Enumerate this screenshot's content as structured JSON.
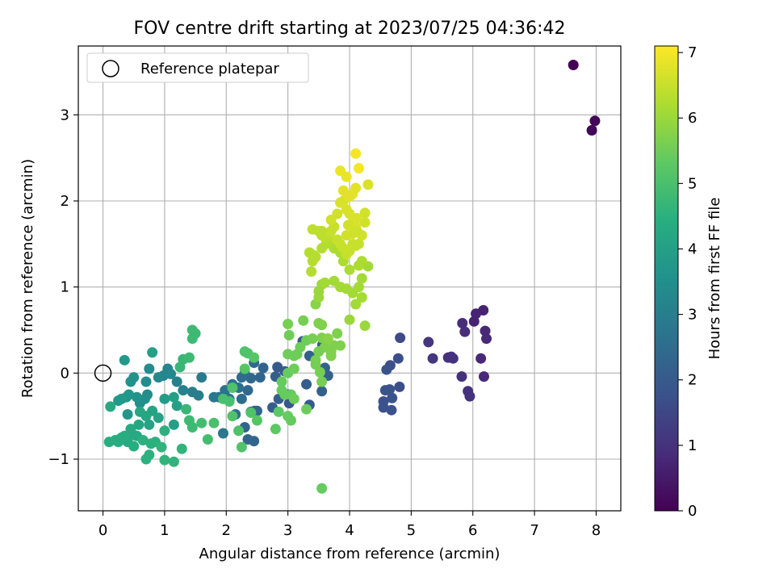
{
  "chart_data": {
    "type": "scatter",
    "title": "FOV centre drift starting at 2023/07/25 04:36:42",
    "xlabel": "Angular distance from reference (arcmin)",
    "ylabel": "Rotation from reference (arcmin)",
    "xlim": [
      -0.4,
      8.4
    ],
    "ylim": [
      -1.6,
      3.8
    ],
    "xticks": [
      0,
      1,
      2,
      3,
      4,
      5,
      6,
      7,
      8
    ],
    "yticks": [
      -1,
      0,
      1,
      2,
      3
    ],
    "grid": true,
    "legend": {
      "placement": "top-left",
      "entries": [
        "Reference platepar"
      ]
    },
    "reference_point": {
      "x": 0,
      "y": 0,
      "label": "Reference platepar"
    },
    "colorbar": {
      "label": "Hours from first FF file",
      "colormap": "viridis",
      "range": [
        0,
        7.1
      ],
      "ticks": [
        0,
        1,
        2,
        3,
        4,
        5,
        6,
        7
      ]
    },
    "points": [
      [
        7.63,
        3.58,
        0.0
      ],
      [
        7.98,
        2.93,
        0.1
      ],
      [
        7.93,
        2.82,
        0.1
      ],
      [
        6.17,
        0.73,
        0.7
      ],
      [
        6.05,
        0.69,
        0.7
      ],
      [
        6.2,
        0.49,
        0.8
      ],
      [
        6.22,
        0.4,
        0.8
      ],
      [
        6.13,
        0.17,
        0.8
      ],
      [
        6.18,
        -0.04,
        0.8
      ],
      [
        6.02,
        0.6,
        0.7
      ],
      [
        5.83,
        0.58,
        0.9
      ],
      [
        5.87,
        0.48,
        0.9
      ],
      [
        5.65,
        0.19,
        1.0
      ],
      [
        5.6,
        0.18,
        1.0
      ],
      [
        5.68,
        0.17,
        1.0
      ],
      [
        5.35,
        0.17,
        1.1
      ],
      [
        5.82,
        -0.04,
        1.0
      ],
      [
        5.92,
        -0.21,
        1.0
      ],
      [
        5.95,
        -0.27,
        1.0
      ],
      [
        5.28,
        0.36,
        1.1
      ],
      [
        4.82,
        0.41,
        1.6
      ],
      [
        4.79,
        0.17,
        1.7
      ],
      [
        4.66,
        0.09,
        1.7
      ],
      [
        4.6,
        0.04,
        1.8
      ],
      [
        4.81,
        -0.16,
        1.7
      ],
      [
        4.65,
        -0.19,
        1.8
      ],
      [
        4.69,
        -0.29,
        1.8
      ],
      [
        4.55,
        -0.33,
        1.8
      ],
      [
        4.55,
        -0.4,
        1.8
      ],
      [
        4.68,
        -0.43,
        1.8
      ],
      [
        4.58,
        -0.2,
        1.8
      ],
      [
        2.83,
        0.07,
        2.0
      ],
      [
        2.95,
        0.02,
        2.0
      ],
      [
        2.8,
        -0.04,
        2.1
      ],
      [
        2.85,
        -0.3,
        2.1
      ],
      [
        2.75,
        -0.4,
        2.1
      ],
      [
        3.0,
        -0.25,
        2.0
      ],
      [
        3.02,
        -0.35,
        2.0
      ],
      [
        3.35,
        -0.37,
        2.0
      ],
      [
        3.3,
        -0.13,
        2.1
      ],
      [
        3.24,
        0.37,
        2.1
      ],
      [
        3.56,
        0.33,
        2.2
      ],
      [
        3.6,
        0.06,
        2.2
      ],
      [
        3.65,
        -0.03,
        2.2
      ],
      [
        3.35,
        0.2,
        2.2
      ],
      [
        3.55,
        -0.21,
        2.2
      ],
      [
        2.6,
        0.06,
        2.3
      ],
      [
        2.55,
        -0.05,
        2.3
      ],
      [
        2.45,
        0.12,
        2.4
      ],
      [
        2.4,
        -0.06,
        2.4
      ],
      [
        2.35,
        -0.2,
        2.4
      ],
      [
        2.3,
        0.0,
        2.5
      ],
      [
        2.25,
        -0.3,
        2.5
      ],
      [
        2.25,
        -0.05,
        2.5
      ],
      [
        2.2,
        -0.17,
        2.6
      ],
      [
        2.15,
        -0.48,
        2.6
      ],
      [
        2.1,
        -0.13,
        2.6
      ],
      [
        2.0,
        -0.28,
        2.7
      ],
      [
        2.05,
        -0.3,
        2.7
      ],
      [
        1.98,
        -0.2,
        2.7
      ],
      [
        1.88,
        -0.28,
        2.7
      ],
      [
        1.8,
        -0.28,
        2.8
      ],
      [
        2.3,
        -0.63,
        2.3
      ],
      [
        2.35,
        -0.77,
        2.3
      ],
      [
        2.45,
        -0.79,
        2.3
      ],
      [
        2.46,
        -0.44,
        2.3
      ],
      [
        2.5,
        -0.44,
        2.3
      ],
      [
        1.95,
        -0.7,
        2.8
      ],
      [
        2.4,
        -0.45,
        2.4
      ],
      [
        1.6,
        -0.05,
        2.9
      ],
      [
        1.55,
        -0.26,
        3.0
      ],
      [
        1.45,
        -0.22,
        3.0
      ],
      [
        1.3,
        -0.2,
        3.1
      ],
      [
        1.2,
        -0.1,
        3.1
      ],
      [
        1.05,
        0.05,
        3.2
      ],
      [
        0.98,
        -0.03,
        3.2
      ],
      [
        1.1,
        -0.01,
        3.3
      ],
      [
        0.9,
        -0.05,
        3.3
      ],
      [
        0.75,
        0.05,
        3.4
      ],
      [
        0.7,
        -0.1,
        3.4
      ],
      [
        0.72,
        -0.25,
        3.4
      ],
      [
        0.68,
        -0.3,
        3.5
      ],
      [
        0.6,
        -0.35,
        3.5
      ],
      [
        0.55,
        -0.28,
        3.6
      ],
      [
        0.5,
        -0.05,
        3.6
      ],
      [
        0.45,
        -0.1,
        3.6
      ],
      [
        0.42,
        -0.25,
        3.7
      ],
      [
        0.4,
        -0.48,
        3.7
      ],
      [
        0.38,
        -0.28,
        3.7
      ],
      [
        0.35,
        0.15,
        3.8
      ],
      [
        0.3,
        -0.3,
        3.8
      ],
      [
        0.25,
        -0.32,
        3.8
      ],
      [
        0.8,
        0.24,
        4.0
      ],
      [
        1.0,
        -0.3,
        3.9
      ],
      [
        1.15,
        -0.28,
        4.0
      ],
      [
        1.2,
        -0.38,
        4.0
      ],
      [
        1.15,
        -0.6,
        4.0
      ],
      [
        0.9,
        -0.52,
        4.1
      ],
      [
        0.8,
        -0.44,
        4.1
      ],
      [
        0.75,
        -0.6,
        4.1
      ],
      [
        0.7,
        -0.5,
        4.2
      ],
      [
        0.6,
        -0.45,
        4.2
      ],
      [
        0.58,
        -0.6,
        4.2
      ],
      [
        0.55,
        -0.73,
        4.3
      ],
      [
        0.5,
        -0.72,
        4.3
      ],
      [
        0.45,
        -0.65,
        4.3
      ],
      [
        0.4,
        -0.8,
        4.3
      ],
      [
        0.35,
        -0.73,
        4.4
      ],
      [
        0.3,
        -0.75,
        4.4
      ],
      [
        0.25,
        -0.8,
        4.4
      ],
      [
        0.2,
        -0.78,
        4.4
      ],
      [
        0.1,
        -0.8,
        4.4
      ],
      [
        0.12,
        -0.39,
        4.3
      ],
      [
        0.5,
        -0.85,
        4.4
      ],
      [
        0.65,
        -0.78,
        4.5
      ],
      [
        0.7,
        -1.0,
        4.5
      ],
      [
        0.75,
        -0.95,
        4.5
      ],
      [
        0.78,
        -0.82,
        4.5
      ],
      [
        0.85,
        -0.8,
        4.5
      ],
      [
        0.95,
        -0.86,
        4.6
      ],
      [
        1.0,
        -0.67,
        4.5
      ],
      [
        1.0,
        -1.01,
        4.6
      ],
      [
        1.15,
        -1.03,
        4.6
      ],
      [
        1.28,
        -0.88,
        4.6
      ],
      [
        1.25,
        0.07,
        4.7
      ],
      [
        1.3,
        0.16,
        4.7
      ],
      [
        1.4,
        0.18,
        4.8
      ],
      [
        1.45,
        0.4,
        4.8
      ],
      [
        1.5,
        0.46,
        4.8
      ],
      [
        1.45,
        0.5,
        4.8
      ],
      [
        1.35,
        -0.42,
        4.7
      ],
      [
        1.4,
        -0.55,
        4.8
      ],
      [
        1.45,
        -0.63,
        4.8
      ],
      [
        1.6,
        -0.58,
        4.9
      ],
      [
        1.7,
        -0.77,
        4.9
      ],
      [
        1.8,
        -0.58,
        5.0
      ],
      [
        1.95,
        -0.3,
        5.0
      ],
      [
        2.05,
        -0.33,
        5.0
      ],
      [
        2.1,
        -0.5,
        5.1
      ],
      [
        2.2,
        -0.67,
        5.1
      ],
      [
        2.25,
        -0.86,
        5.1
      ],
      [
        2.35,
        0.23,
        5.1
      ],
      [
        2.3,
        0.25,
        5.1
      ],
      [
        2.45,
        0.18,
        5.2
      ],
      [
        2.4,
        -0.46,
        5.1
      ],
      [
        2.5,
        -0.55,
        5.2
      ],
      [
        2.8,
        -0.65,
        5.3
      ],
      [
        2.85,
        -0.45,
        5.3
      ],
      [
        2.3,
        0.05,
        5.2
      ],
      [
        2.1,
        -0.17,
        5.1
      ],
      [
        2.9,
        -0.1,
        5.4
      ],
      [
        2.9,
        -0.2,
        5.4
      ],
      [
        3.0,
        0.0,
        5.4
      ],
      [
        3.0,
        -0.5,
        5.4
      ],
      [
        2.95,
        -0.25,
        5.4
      ],
      [
        3.05,
        -0.55,
        5.4
      ],
      [
        3.05,
        -0.25,
        5.4
      ],
      [
        3.1,
        -0.3,
        5.5
      ],
      [
        3.1,
        0.05,
        5.5
      ],
      [
        3.15,
        0.22,
        5.5
      ],
      [
        3.2,
        0.3,
        5.5
      ],
      [
        3.3,
        0.38,
        5.5
      ],
      [
        3.3,
        -0.42,
        5.5
      ],
      [
        3.0,
        0.22,
        5.5
      ],
      [
        3.02,
        0.44,
        5.5
      ],
      [
        3.0,
        0.57,
        5.6
      ],
      [
        3.25,
        0.61,
        5.6
      ],
      [
        3.4,
        0.4,
        5.6
      ],
      [
        3.45,
        0.1,
        5.6
      ],
      [
        3.5,
        0.25,
        5.6
      ],
      [
        3.55,
        0.41,
        5.7
      ],
      [
        3.55,
        0.56,
        5.7
      ],
      [
        3.6,
        0.3,
        5.7
      ],
      [
        3.65,
        0.4,
        5.7
      ],
      [
        3.7,
        0.2,
        5.7
      ],
      [
        3.75,
        0.32,
        5.7
      ],
      [
        3.8,
        0.46,
        5.7
      ],
      [
        3.85,
        0.32,
        5.7
      ],
      [
        3.45,
        0.15,
        5.6
      ],
      [
        3.5,
        0.58,
        5.7
      ],
      [
        3.52,
        0.01,
        5.6
      ],
      [
        3.55,
        -0.1,
        5.6
      ],
      [
        3.55,
        -1.34,
        5.4
      ],
      [
        3.45,
        0.8,
        5.8
      ],
      [
        3.7,
        0.25,
        5.7
      ],
      [
        3.65,
        0.4,
        5.8
      ],
      [
        3.1,
        0.2,
        5.5
      ],
      [
        3.5,
        0.25,
        5.6
      ],
      [
        3.5,
        0.88,
        6.0
      ],
      [
        3.55,
        1.03,
        6.0
      ],
      [
        3.5,
        0.95,
        6.0
      ],
      [
        3.6,
        1.05,
        6.1
      ],
      [
        3.75,
        1.07,
        6.1
      ],
      [
        3.85,
        1.0,
        6.1
      ],
      [
        3.95,
        0.98,
        6.1
      ],
      [
        4.05,
        0.93,
        6.1
      ],
      [
        4.2,
        0.88,
        6.1
      ],
      [
        4.1,
        0.8,
        6.1
      ],
      [
        4.0,
        0.62,
        6.0
      ],
      [
        4.25,
        0.55,
        6.0
      ],
      [
        4.15,
        1.0,
        6.1
      ],
      [
        4.2,
        1.1,
        6.1
      ],
      [
        4.3,
        1.24,
        6.1
      ],
      [
        4.2,
        1.3,
        6.2
      ],
      [
        4.15,
        1.25,
        6.2
      ],
      [
        4.0,
        1.2,
        6.2
      ],
      [
        3.9,
        1.3,
        6.2
      ],
      [
        3.85,
        1.4,
        6.2
      ],
      [
        3.75,
        1.45,
        6.2
      ],
      [
        3.7,
        1.55,
        6.3
      ],
      [
        3.62,
        1.5,
        6.3
      ],
      [
        3.55,
        1.45,
        6.3
      ],
      [
        3.45,
        1.35,
        6.3
      ],
      [
        3.4,
        1.3,
        6.3
      ],
      [
        3.35,
        1.4,
        6.3
      ],
      [
        3.38,
        1.18,
        6.3
      ],
      [
        3.4,
        1.67,
        6.4
      ],
      [
        3.5,
        1.65,
        6.4
      ],
      [
        3.55,
        1.6,
        6.4
      ],
      [
        3.6,
        1.58,
        6.4
      ],
      [
        3.65,
        1.6,
        6.4
      ],
      [
        3.7,
        1.65,
        6.5
      ],
      [
        3.75,
        1.7,
        6.5
      ],
      [
        3.8,
        1.55,
        6.5
      ],
      [
        3.85,
        1.5,
        6.5
      ],
      [
        3.9,
        1.45,
        6.5
      ],
      [
        3.95,
        1.38,
        6.5
      ],
      [
        4.0,
        1.42,
        6.5
      ],
      [
        4.05,
        1.5,
        6.5
      ],
      [
        4.1,
        1.48,
        6.5
      ],
      [
        4.15,
        1.5,
        6.5
      ],
      [
        4.2,
        1.6,
        6.6
      ],
      [
        4.25,
        1.75,
        6.6
      ],
      [
        4.25,
        1.86,
        6.6
      ],
      [
        4.3,
        2.19,
        6.7
      ],
      [
        3.7,
        1.78,
        6.6
      ],
      [
        3.8,
        1.85,
        6.6
      ],
      [
        3.85,
        1.98,
        6.7
      ],
      [
        3.9,
        2.0,
        6.7
      ],
      [
        3.95,
        1.9,
        6.7
      ],
      [
        4.0,
        1.85,
        6.7
      ],
      [
        4.05,
        1.75,
        6.7
      ],
      [
        4.1,
        1.7,
        6.7
      ],
      [
        4.0,
        2.05,
        6.8
      ],
      [
        4.05,
        2.08,
        6.8
      ],
      [
        4.1,
        2.15,
        6.8
      ],
      [
        3.9,
        2.12,
        6.8
      ],
      [
        3.95,
        2.28,
        6.9
      ],
      [
        3.85,
        2.35,
        6.9
      ],
      [
        4.15,
        2.38,
        7.0
      ],
      [
        4.1,
        2.55,
        7.0
      ],
      [
        3.95,
        1.6,
        6.6
      ],
      [
        4.05,
        1.62,
        6.6
      ],
      [
        4.12,
        1.65,
        6.6
      ],
      [
        3.55,
        1.65,
        6.4
      ],
      [
        3.42,
        1.37,
        6.3
      ],
      [
        4.12,
        1.8,
        6.7
      ],
      [
        3.98,
        1.72,
        6.6
      ]
    ]
  }
}
